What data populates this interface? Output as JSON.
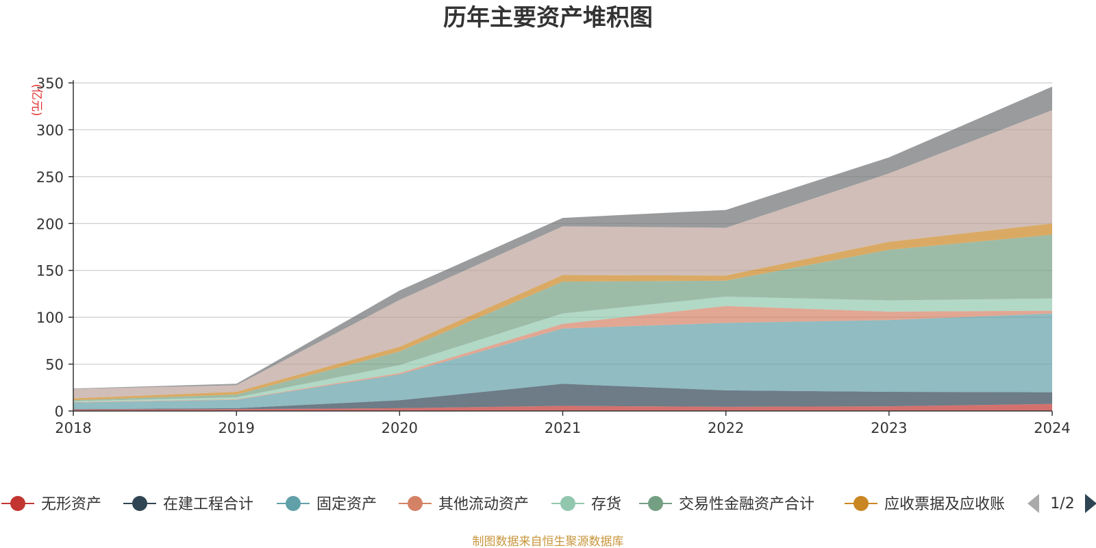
{
  "chart_data": {
    "type": "area",
    "stacked": true,
    "title": "历年主要资产堆积图",
    "unit_label": "(亿元)",
    "categories": [
      "2018",
      "2019",
      "2020",
      "2021",
      "2022",
      "2023",
      "2024"
    ],
    "ylim": [
      0,
      350
    ],
    "yticks": [
      "0",
      "50",
      "100",
      "150",
      "200",
      "250",
      "300",
      "350"
    ],
    "grid": true,
    "series": [
      {
        "name": "无形资产",
        "color": "#c23531",
        "values": [
          1.5,
          2,
          3,
          5.5,
          4.5,
          5,
          7.5
        ],
        "in_legend": true
      },
      {
        "name": "在建工程合计",
        "color": "#2f4554",
        "values": [
          0.5,
          1,
          8.5,
          23.5,
          17.5,
          15.5,
          12.5
        ],
        "in_legend": true
      },
      {
        "name": "固定资产",
        "color": "#61a0a8",
        "values": [
          7,
          9,
          27.5,
          59,
          72,
          76.5,
          84
        ],
        "in_legend": true
      },
      {
        "name": "其他流动资产",
        "color": "#d48265",
        "values": [
          0.5,
          0.5,
          1.5,
          5,
          18,
          9,
          3
        ],
        "in_legend": true
      },
      {
        "name": "存货",
        "color": "#91c7ae",
        "values": [
          1,
          2,
          8.5,
          11,
          10,
          12,
          13
        ],
        "in_legend": true
      },
      {
        "name": "交易性金融资产合计",
        "color": "#749f83",
        "values": [
          1,
          3,
          14.5,
          34,
          17,
          54,
          68
        ],
        "in_legend": true
      },
      {
        "name": "应收票据及应收账",
        "color": "#ca8622",
        "values": [
          2,
          3,
          5,
          7,
          5.5,
          8.5,
          12
        ],
        "in_legend": true
      },
      {
        "name": "",
        "color": "#bda29a",
        "values": [
          10,
          7,
          50,
          52,
          51,
          73,
          121
        ],
        "in_legend": false
      },
      {
        "name": "",
        "color": "#6e7074",
        "values": [
          0.5,
          1.5,
          10,
          9,
          19,
          17,
          25
        ],
        "in_legend": false
      }
    ]
  },
  "legend_pager": {
    "page_text": "1/2",
    "prev_icon": "triangle-left-icon",
    "next_icon": "triangle-right-icon"
  },
  "footer": {
    "source_text": "制图数据来自恒生聚源数据库",
    "color": "#c8963c"
  }
}
